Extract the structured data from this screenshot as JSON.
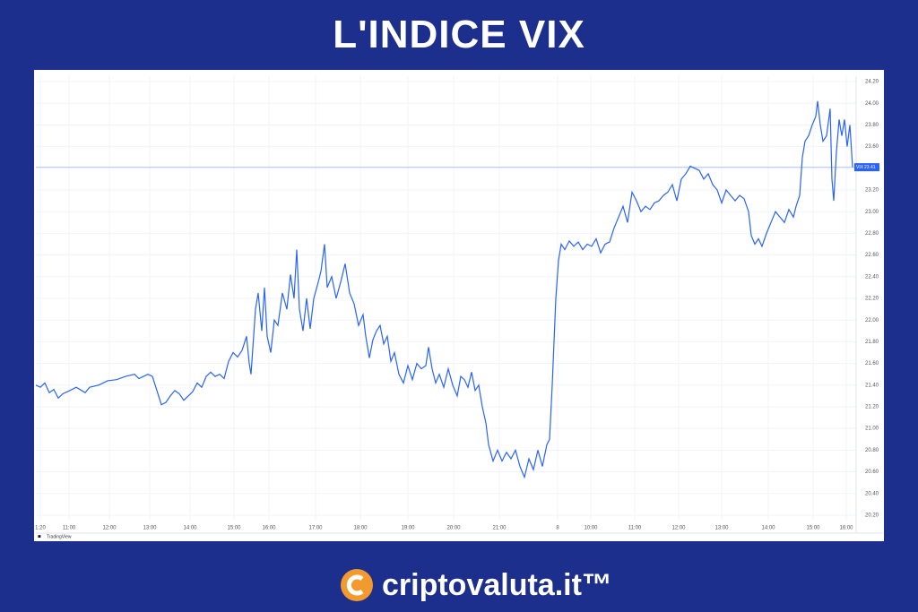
{
  "header": {
    "title": "L'INDICE VIX"
  },
  "chart_data": {
    "type": "line",
    "series": [
      {
        "name": "VIX",
        "color": "#2962ff",
        "x": [
          0,
          5,
          10,
          15,
          20,
          25,
          30,
          38,
          45,
          55,
          60,
          70,
          80,
          90,
          100,
          110,
          115,
          125,
          130,
          135,
          140,
          145,
          150,
          155,
          160,
          165,
          170,
          175,
          180,
          185,
          190,
          195,
          200,
          205,
          210,
          215,
          220,
          225,
          230,
          235,
          238,
          240,
          245,
          248,
          252,
          255,
          258,
          262,
          266,
          270,
          275,
          280,
          284,
          288,
          291,
          294,
          298,
          302,
          306,
          310,
          315,
          318,
          322,
          325,
          330,
          335,
          340,
          345,
          350,
          355,
          360,
          365,
          368,
          372,
          376,
          380,
          384,
          388,
          392,
          396,
          400,
          405,
          410,
          415,
          420,
          425,
          430,
          435,
          438,
          442,
          446,
          450,
          455,
          460,
          465,
          470,
          474,
          478,
          482,
          486,
          490,
          494,
          498,
          502,
          505,
          510,
          515,
          520,
          525,
          530,
          535,
          540,
          545,
          550,
          555,
          560,
          565,
          570,
          573,
          576,
          580,
          583,
          586,
          590,
          595,
          600,
          605,
          610,
          615,
          620,
          625,
          630,
          635,
          640,
          645,
          650,
          655,
          660,
          665,
          670,
          675,
          680,
          685,
          690,
          695,
          700,
          705,
          710,
          715,
          720,
          725,
          730,
          735,
          740,
          745,
          750,
          755,
          760,
          765,
          770,
          775,
          780,
          785,
          790,
          795,
          798,
          802,
          806,
          810,
          815,
          820,
          825,
          830,
          835,
          840,
          845,
          848,
          852,
          855,
          858,
          862,
          866,
          870,
          872,
          875,
          878,
          882,
          886,
          888,
          890,
          893,
          896,
          899,
          902,
          905,
          908,
          911
        ],
        "values": [
          21.4,
          21.38,
          21.42,
          21.33,
          21.36,
          21.28,
          21.32,
          21.35,
          21.38,
          21.33,
          21.38,
          21.4,
          21.44,
          21.45,
          21.48,
          21.5,
          21.46,
          21.5,
          21.48,
          21.35,
          21.22,
          21.24,
          21.3,
          21.35,
          21.32,
          21.26,
          21.3,
          21.34,
          21.42,
          21.38,
          21.48,
          21.52,
          21.48,
          21.5,
          21.46,
          21.62,
          21.7,
          21.66,
          21.72,
          21.85,
          21.6,
          21.5,
          22.1,
          22.25,
          21.9,
          22.3,
          21.85,
          21.7,
          22.0,
          21.95,
          22.25,
          22.1,
          22.42,
          22.2,
          22.65,
          22.1,
          21.9,
          22.2,
          21.92,
          22.2,
          22.35,
          22.45,
          22.7,
          22.3,
          22.4,
          22.2,
          22.35,
          22.52,
          22.25,
          22.15,
          21.95,
          22.05,
          21.85,
          21.65,
          21.82,
          21.9,
          21.95,
          21.78,
          21.85,
          21.62,
          21.7,
          21.5,
          21.42,
          21.58,
          21.45,
          21.6,
          21.55,
          21.58,
          21.75,
          21.55,
          21.42,
          21.5,
          21.38,
          21.55,
          21.4,
          21.3,
          21.48,
          21.45,
          21.38,
          21.52,
          21.35,
          21.4,
          21.2,
          21.05,
          20.85,
          20.7,
          20.8,
          20.7,
          20.78,
          20.72,
          20.8,
          20.65,
          20.55,
          20.72,
          20.62,
          20.8,
          20.65,
          20.85,
          20.9,
          21.4,
          22.2,
          22.55,
          22.7,
          22.65,
          22.73,
          22.68,
          22.72,
          22.65,
          22.7,
          22.68,
          22.75,
          22.62,
          22.7,
          22.72,
          22.85,
          22.95,
          23.05,
          22.9,
          23.18,
          23.1,
          23.0,
          23.05,
          23.02,
          23.08,
          23.1,
          23.15,
          23.18,
          23.25,
          23.1,
          23.3,
          23.35,
          23.42,
          23.4,
          23.38,
          23.3,
          23.35,
          23.25,
          23.2,
          23.08,
          23.2,
          23.15,
          23.1,
          23.15,
          23.12,
          23.0,
          22.78,
          22.7,
          22.75,
          22.68,
          22.8,
          22.9,
          23.0,
          22.95,
          22.9,
          23.02,
          22.95,
          23.05,
          23.15,
          23.5,
          23.65,
          23.7,
          23.8,
          23.88,
          24.02,
          23.8,
          23.65,
          23.7,
          23.95,
          23.3,
          23.1,
          23.55,
          23.85,
          23.7,
          23.85,
          23.6,
          23.8,
          23.41
        ]
      }
    ],
    "last_value": 23.41,
    "xlim": [
      0,
      915
    ],
    "xticks": [
      {
        "value": 5,
        "label": "1:20"
      },
      {
        "value": 37,
        "label": "11:00"
      },
      {
        "value": 82,
        "label": "12:00"
      },
      {
        "value": 127,
        "label": "13:00"
      },
      {
        "value": 172,
        "label": "14:00"
      },
      {
        "value": 221,
        "label": "15:00"
      },
      {
        "value": 260,
        "label": "16:00"
      },
      {
        "value": 312,
        "label": "17:00"
      },
      {
        "value": 362,
        "label": "18:00"
      },
      {
        "value": 415,
        "label": "19:00"
      },
      {
        "value": 466,
        "label": "20:00"
      },
      {
        "value": 517,
        "label": "21:00"
      },
      {
        "value": 582,
        "label": "8"
      },
      {
        "value": 619,
        "label": "10:00"
      },
      {
        "value": 668,
        "label": "11:00"
      },
      {
        "value": 717,
        "label": "12:00"
      },
      {
        "value": 765,
        "label": "13:00"
      },
      {
        "value": 817,
        "label": "14:00"
      },
      {
        "value": 867,
        "label": "15:00"
      },
      {
        "value": 904,
        "label": "16:00"
      }
    ],
    "ylim": [
      20.15,
      24.25
    ],
    "yticks": [
      {
        "value": 20.2,
        "label": "20.20"
      },
      {
        "value": 20.4,
        "label": "20.40"
      },
      {
        "value": 20.6,
        "label": "20.60"
      },
      {
        "value": 20.8,
        "label": "20.80"
      },
      {
        "value": 21,
        "label": "21.00"
      },
      {
        "value": 21.2,
        "label": "21.20"
      },
      {
        "value": 21.4,
        "label": "21.40"
      },
      {
        "value": 21.6,
        "label": "21.60"
      },
      {
        "value": 21.8,
        "label": "21.80"
      },
      {
        "value": 22,
        "label": "22.00"
      },
      {
        "value": 22.2,
        "label": "22.20"
      },
      {
        "value": 22.4,
        "label": "22.40"
      },
      {
        "value": 22.6,
        "label": "22.60"
      },
      {
        "value": 22.8,
        "label": "22.80"
      },
      {
        "value": 23,
        "label": "23.00"
      },
      {
        "value": 23.2,
        "label": "23.20"
      },
      {
        "value": 23.4,
        "label": "23.40"
      },
      {
        "value": 23.6,
        "label": "23.60"
      },
      {
        "value": 23.8,
        "label": "23.80"
      },
      {
        "value": 24,
        "label": "24.00"
      },
      {
        "value": 24.2,
        "label": "24.20"
      }
    ],
    "grid": true,
    "watermark": "TradingView"
  },
  "footer": {
    "brand": "criptovaluta.it™"
  }
}
